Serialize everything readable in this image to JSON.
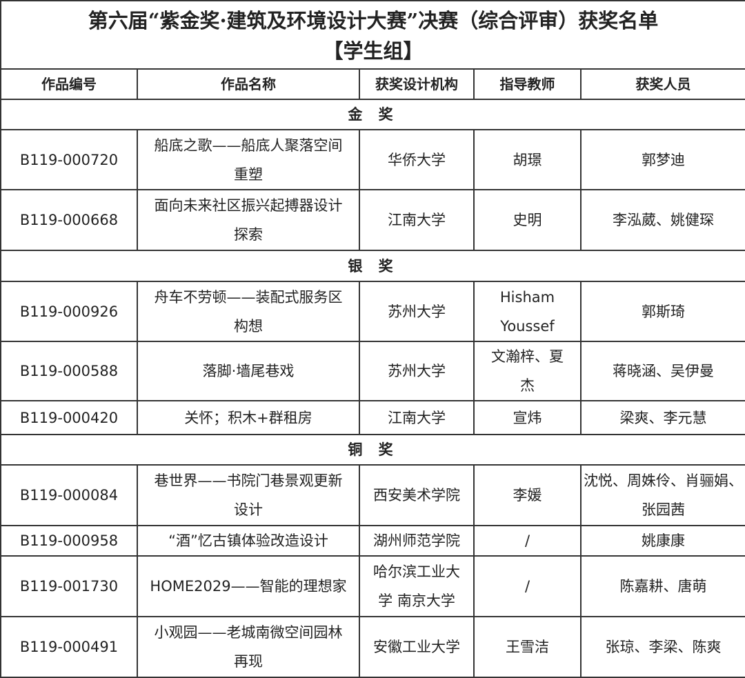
{
  "title": "第六届“紫金奖·建筑及环境设计大赛”决赛（综合评审）获奖名单",
  "subtitle": "【学生组】",
  "headers": [
    "作品编号",
    "作品名称",
    "获奖设计机构",
    "指导教师",
    "获奖人员"
  ],
  "sections": [
    {
      "label": "金 奖",
      "rows": [
        {
          "id": "B119-000720",
          "name": "船底之歌——船底人聚落空间重塑",
          "org": "华侨大学",
          "teacher": "胡璟",
          "people": "郭梦迪"
        },
        {
          "id": "B119-000668",
          "name": "面向未来社区振兴起搏器设计探索",
          "org": "江南大学",
          "teacher": "史明",
          "people": "李泓葳、姚健琛"
        }
      ]
    },
    {
      "label": "银 奖",
      "rows": [
        {
          "id": "B119-000926",
          "name": "舟车不劳顿——装配式服务区构想",
          "org": "苏州大学",
          "teacher": "Hisham Youssef",
          "people": "郭斯琦"
        },
        {
          "id": "B119-000588",
          "name": "落脚·墙尾巷戏",
          "org": "苏州大学",
          "teacher": "文瀚梓、夏杰",
          "people": "蒋晓涵、吴伊曼"
        },
        {
          "id": "B119-000420",
          "name": "关怀；积木+群租房",
          "org": "江南大学",
          "teacher": "宣炜",
          "people": "梁爽、李元慧"
        }
      ]
    },
    {
      "label": "铜 奖",
      "rows": [
        {
          "id": "B119-000084",
          "name": "巷世界——书院门巷景观更新设计",
          "org": "西安美术学院",
          "teacher": "李媛",
          "people": "沈悦、周姝伶、肖骊娟、张园茜"
        },
        {
          "id": "B119-000958",
          "name": "“酒”忆古镇体验改造设计",
          "org": "湖州师范学院",
          "teacher": "/",
          "people": "姚康康"
        },
        {
          "id": "B119-001730",
          "name": "HOME2029——智能的理想家",
          "org": "哈尔滨工业大学 南京大学",
          "teacher": "/",
          "people": "陈嘉耕、唐萌"
        },
        {
          "id": "B119-000491",
          "name": "小观园——老城南微空间园林再现",
          "org": "安徽工业大学",
          "teacher": "王雪洁",
          "people": "张琼、李梁、陈爽"
        }
      ]
    }
  ]
}
